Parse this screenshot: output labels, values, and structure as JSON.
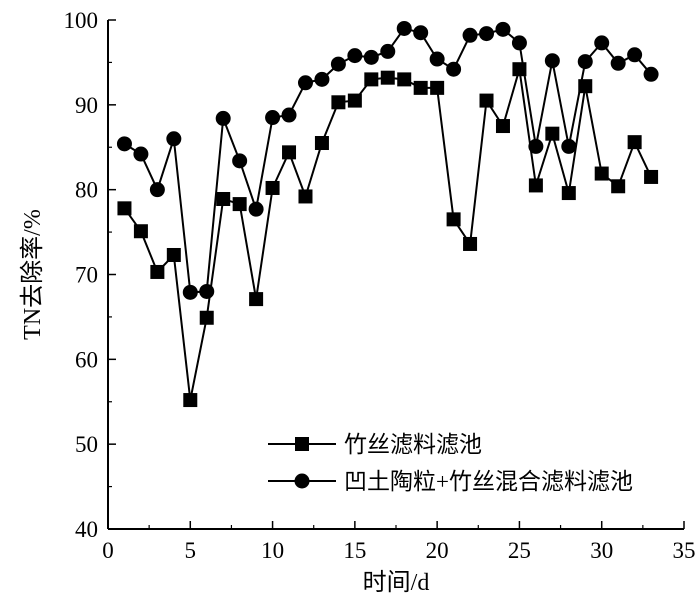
{
  "chart_data": {
    "type": "line",
    "title": "",
    "xlabel": "时间/d",
    "ylabel": "TN去除率/%",
    "xlim": [
      0,
      35
    ],
    "ylim": [
      40,
      100
    ],
    "xticks": [
      0,
      5,
      10,
      15,
      20,
      25,
      30,
      35
    ],
    "yticks": [
      40,
      50,
      60,
      70,
      80,
      90,
      100
    ],
    "grid": false,
    "legend_position": "bottom-right",
    "series": [
      {
        "name": "竹丝滤料滤池",
        "marker": "square",
        "color": "#000000",
        "x": [
          1,
          2,
          3,
          4,
          5,
          6,
          7,
          8,
          9,
          10,
          11,
          12,
          13,
          14,
          15,
          16,
          17,
          18,
          19,
          20,
          21,
          22,
          23,
          24,
          25,
          26,
          27,
          28,
          29,
          30,
          31,
          32,
          33
        ],
        "y": [
          77.8,
          75.1,
          70.3,
          72.3,
          55.2,
          64.9,
          78.9,
          78.3,
          67.1,
          80.2,
          84.4,
          79.2,
          85.5,
          90.3,
          90.5,
          93.0,
          93.2,
          93.0,
          92.0,
          92.0,
          76.5,
          73.6,
          90.5,
          87.5,
          94.2,
          80.5,
          86.6,
          79.6,
          92.2,
          81.9,
          80.4,
          85.6,
          81.5
        ]
      },
      {
        "name": "凹土陶粒+竹丝混合滤料滤池",
        "marker": "circle",
        "color": "#000000",
        "x": [
          1,
          2,
          3,
          4,
          5,
          6,
          7,
          8,
          9,
          10,
          11,
          12,
          13,
          14,
          15,
          16,
          17,
          18,
          19,
          20,
          21,
          22,
          23,
          24,
          25,
          26,
          27,
          28,
          29,
          30,
          31,
          32,
          33
        ],
        "y": [
          85.4,
          84.2,
          80.0,
          86.0,
          67.9,
          68.0,
          88.4,
          83.4,
          77.7,
          88.5,
          88.8,
          92.6,
          93.0,
          94.8,
          95.8,
          95.6,
          96.3,
          99.0,
          98.5,
          95.4,
          94.2,
          98.2,
          98.4,
          98.9,
          97.3,
          85.1,
          95.2,
          85.1,
          95.1,
          97.3,
          94.9,
          95.9,
          93.6
        ]
      }
    ]
  }
}
